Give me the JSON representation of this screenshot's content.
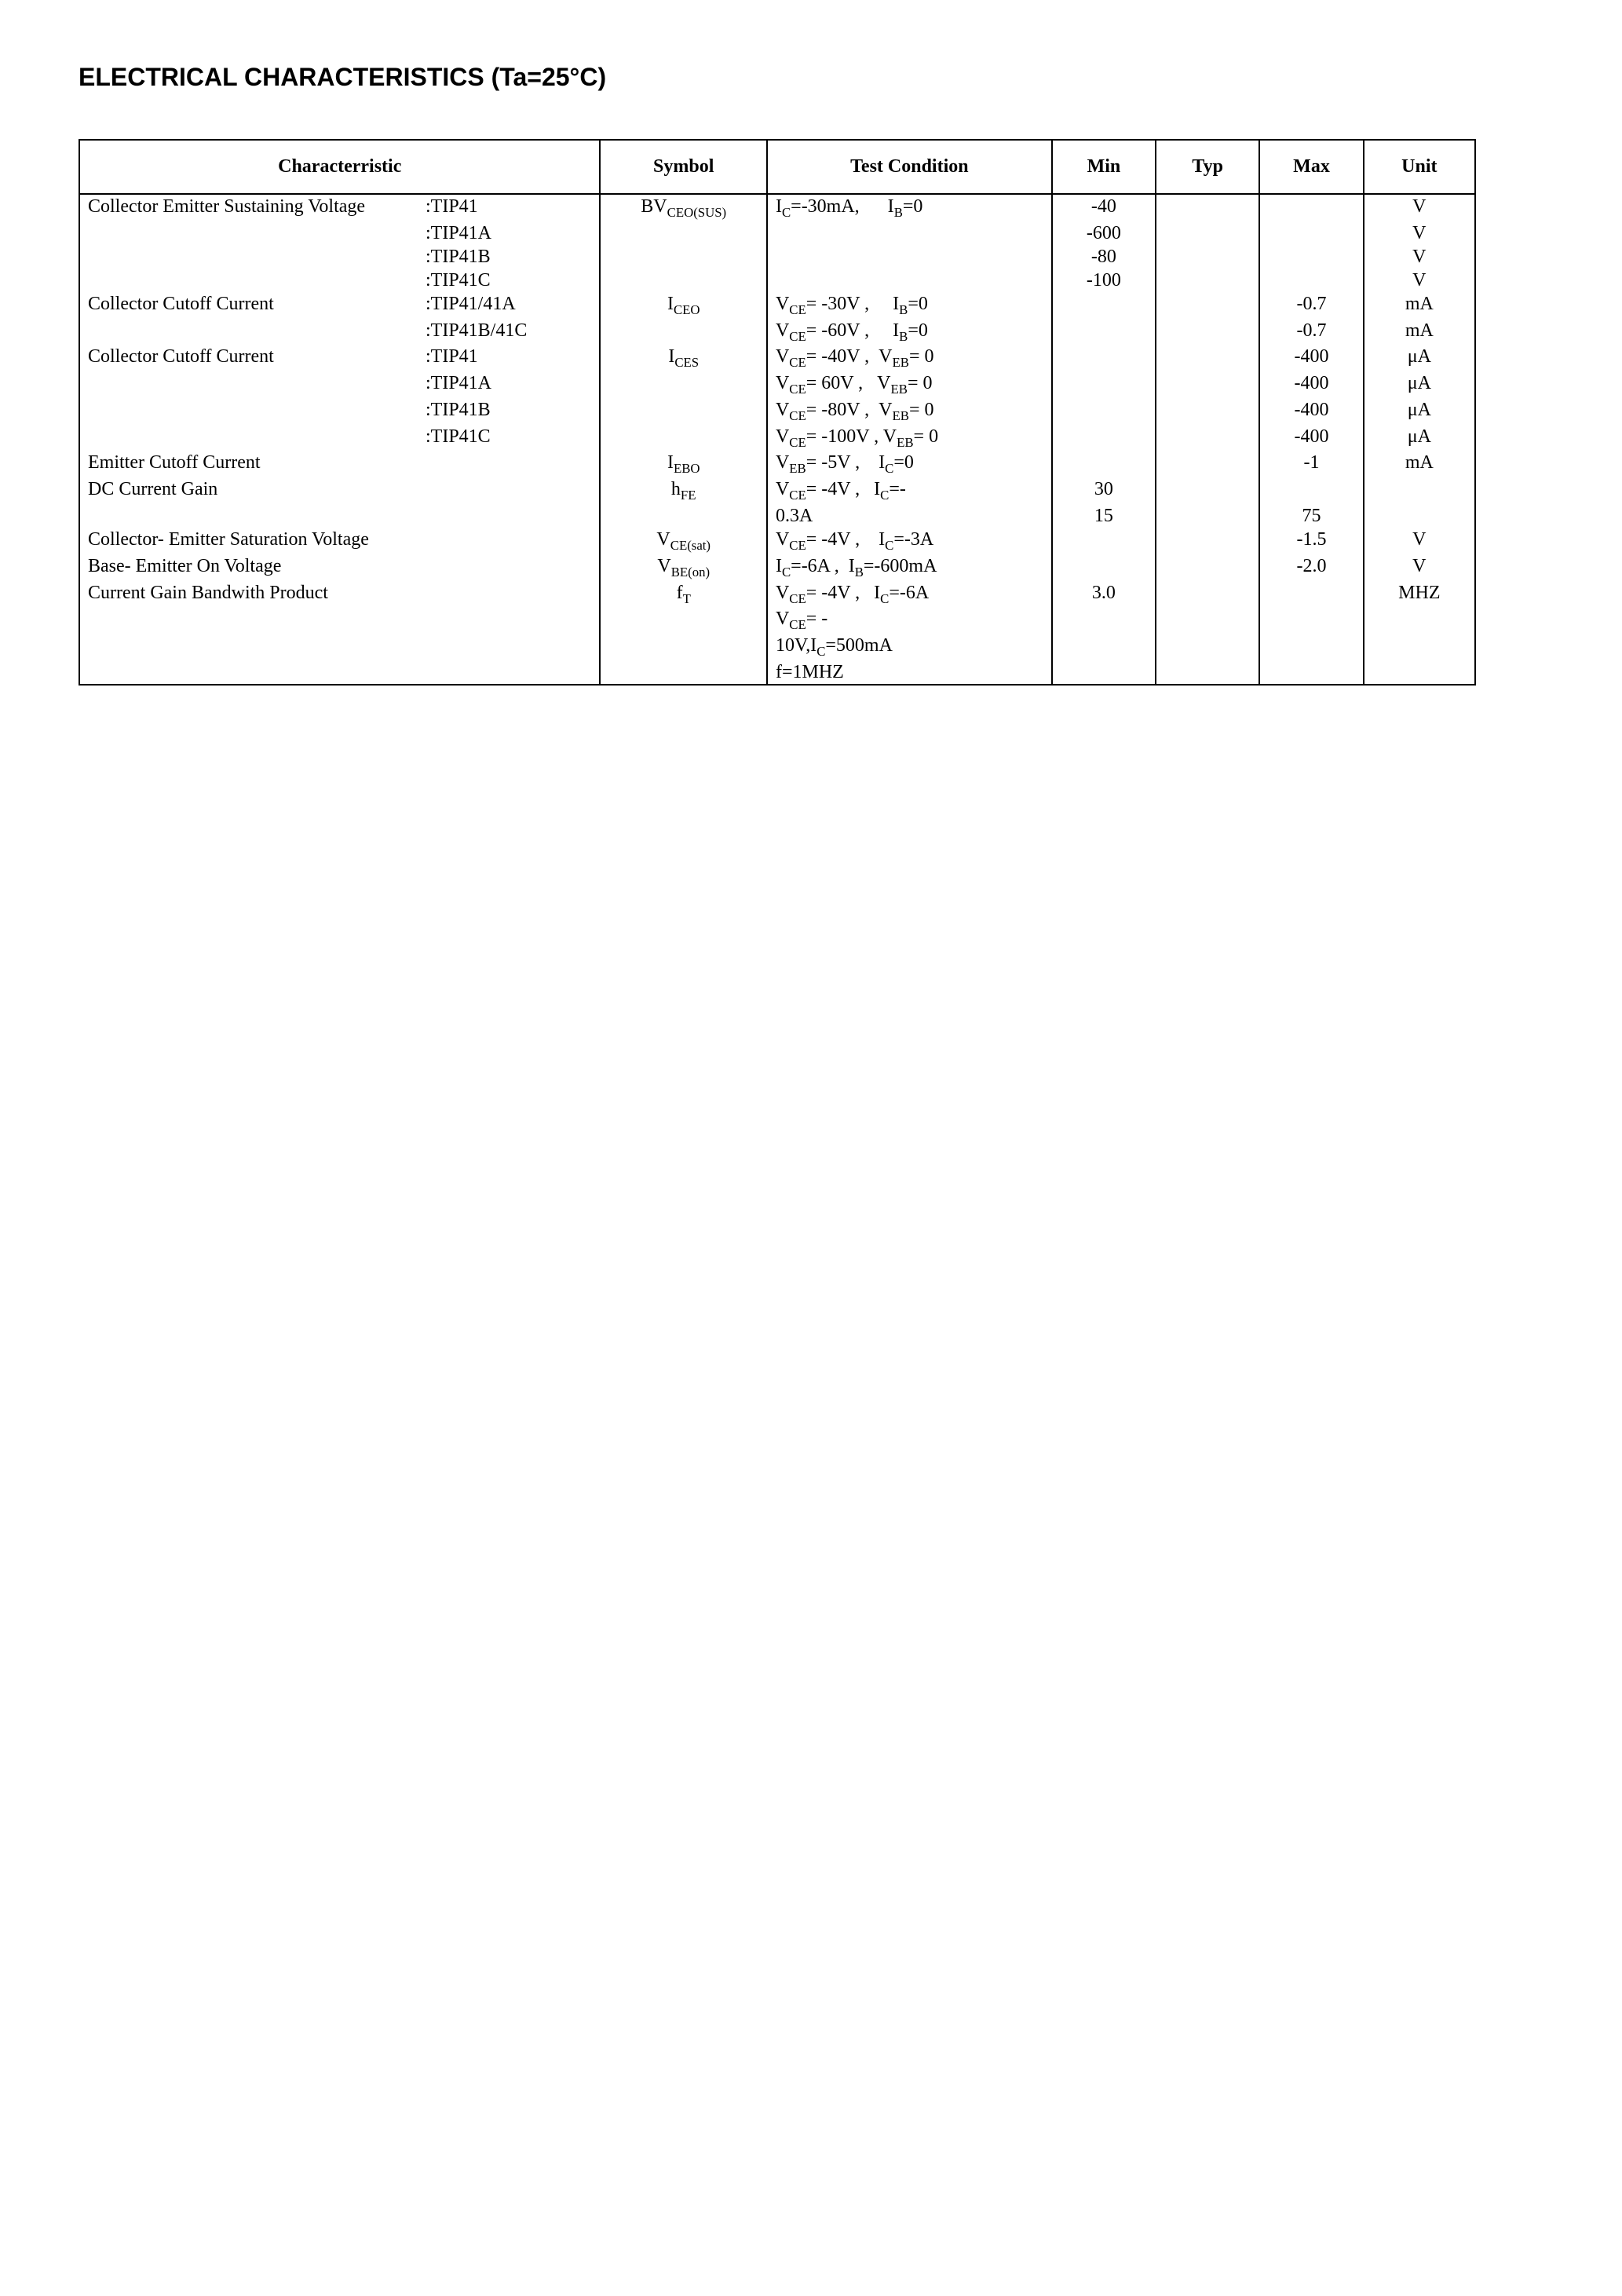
{
  "title": "ELECTRICAL CHARACTERISTICS (Ta=25°C)",
  "headers": {
    "characteristic": "Characterristic",
    "symbol": "Symbol",
    "condition": "Test Condition",
    "min": "Min",
    "typ": "Typ",
    "max": "Max",
    "unit": "Unit"
  },
  "rows": [
    {
      "name": "Collector Emitter Sustaining Voltage",
      "variant": ":TIP41",
      "symbol_html": "BV<span class='sub'>CEO(SUS)</span>",
      "cond_html": "I<span class='sub'>C</span>=-30mA,&nbsp;&nbsp;&nbsp;&nbsp;&nbsp;&nbsp;I<span class='sub'>B</span>=0",
      "min": "-40",
      "typ": "",
      "max": "",
      "unit": "V"
    },
    {
      "name": "",
      "variant": ":TIP41A",
      "symbol_html": "",
      "cond_html": "",
      "min": "-600",
      "typ": "",
      "max": "",
      "unit": "V"
    },
    {
      "name": "",
      "variant": ":TIP41B",
      "symbol_html": "",
      "cond_html": "",
      "min": "-80",
      "typ": "",
      "max": "",
      "unit": "V"
    },
    {
      "name": "",
      "variant": ":TIP41C",
      "symbol_html": "",
      "cond_html": "",
      "min": "-100",
      "typ": "",
      "max": "",
      "unit": "V"
    },
    {
      "name": "Collector Cutoff Current",
      "variant": ":TIP41/41A",
      "symbol_html": "I<span class='sub'>CEO</span>",
      "cond_html": "V<span class='sub'>CE</span>= -30V ,&nbsp;&nbsp;&nbsp;&nbsp;&nbsp;I<span class='sub'>B</span>=0",
      "min": "",
      "typ": "",
      "max": "-0.7",
      "unit": "mA"
    },
    {
      "name": "",
      "variant": ":TIP41B/41C",
      "symbol_html": "",
      "cond_html": "V<span class='sub'>CE</span>= -60V ,&nbsp;&nbsp;&nbsp;&nbsp;&nbsp;I<span class='sub'>B</span>=0",
      "min": "",
      "typ": "",
      "max": "-0.7",
      "unit": "mA"
    },
    {
      "name": "Collector Cutoff Current",
      "variant": ":TIP41",
      "symbol_html": "I<span class='sub'>CES</span>",
      "cond_html": "V<span class='sub'>CE</span>= -40V ,&nbsp;&nbsp;V<span class='sub'>EB</span>= 0",
      "min": "",
      "typ": "",
      "max": "-400",
      "unit": "μA"
    },
    {
      "name": "",
      "variant": ":TIP41A",
      "symbol_html": "",
      "cond_html": "V<span class='sub'>CE</span>= 60V ,&nbsp;&nbsp;&nbsp;V<span class='sub'>EB</span>= 0",
      "min": "",
      "typ": "",
      "max": "-400",
      "unit": "μA"
    },
    {
      "name": "",
      "variant": ":TIP41B",
      "symbol_html": "",
      "cond_html": "V<span class='sub'>CE</span>= -80V ,&nbsp;&nbsp;V<span class='sub'>EB</span>= 0",
      "min": "",
      "typ": "",
      "max": "-400",
      "unit": "μA"
    },
    {
      "name": "",
      "variant": ":TIP41C",
      "symbol_html": "",
      "cond_html": "V<span class='sub'>CE</span>= -100V , V<span class='sub'>EB</span>= 0",
      "min": "",
      "typ": "",
      "max": "-400",
      "unit": "μA"
    },
    {
      "name": "Emitter Cutoff Current",
      "variant": "",
      "symbol_html": "I<span class='sub'>EBO</span>",
      "cond_html": "V<span class='sub'>EB</span>= -5V ,&nbsp;&nbsp;&nbsp;&nbsp;I<span class='sub'>C</span>=0",
      "min": "",
      "typ": "",
      "max": "-1",
      "unit": "mA"
    },
    {
      "name": "DC Current Gain",
      "variant": "",
      "symbol_html": "h<span class='sub'>FE</span>",
      "cond_html": "V<span class='sub'>CE</span>= -4V ,&nbsp;&nbsp;&nbsp;I<span class='sub'>C</span>=-",
      "min": "30",
      "typ": "",
      "max": "",
      "unit": ""
    },
    {
      "name": "",
      "variant": "",
      "symbol_html": "",
      "cond_html": "0.3A",
      "min": "15",
      "typ": "",
      "max": "75",
      "unit": ""
    },
    {
      "name": "Collector- Emitter Saturation Voltage",
      "variant": "",
      "symbol_html": "V<span class='sub'>CE(sat)</span>",
      "cond_html": "V<span class='sub'>CE</span>= -4V ,&nbsp;&nbsp;&nbsp;&nbsp;I<span class='sub'>C</span>=-3A",
      "min": "",
      "typ": "",
      "max": "-1.5",
      "unit": "V"
    },
    {
      "name": "Base- Emitter On Voltage",
      "variant": "",
      "symbol_html": "V<span class='sub'>BE(on)</span>",
      "cond_html": "I<span class='sub'>C</span>=-6A ,&nbsp;&nbsp;I<span class='sub'>B</span>=-600mA",
      "min": "",
      "typ": "",
      "max": "-2.0",
      "unit": "V"
    },
    {
      "name": "Current Gain Bandwith Product",
      "variant": "",
      "symbol_html": "f<span class='sub'>T</span>",
      "cond_html": "V<span class='sub'>CE</span>= -4V ,&nbsp;&nbsp;&nbsp;I<span class='sub'>C</span>=-6A",
      "min": "3.0",
      "typ": "",
      "max": "",
      "unit": "MHZ"
    },
    {
      "name": "",
      "variant": "",
      "symbol_html": "",
      "cond_html": "V<span class='sub'>CE</span>= -",
      "min": "",
      "typ": "",
      "max": "",
      "unit": ""
    },
    {
      "name": "",
      "variant": "",
      "symbol_html": "",
      "cond_html": "10V,I<span class='sub'>C</span>=500mA",
      "min": "",
      "typ": "",
      "max": "",
      "unit": ""
    },
    {
      "name": "",
      "variant": "",
      "symbol_html": "",
      "cond_html": "f=1MHZ",
      "min": "",
      "typ": "",
      "max": "",
      "unit": ""
    }
  ],
  "style": {
    "title_fontsize": 32,
    "body_fontsize": 24,
    "text_color": "#000000",
    "background_color": "#ffffff",
    "border_color": "#000000",
    "columns": {
      "characteristic_width": 640,
      "symbol_width": 190,
      "condition_width": 340,
      "min_width": 110,
      "typ_width": 110,
      "max_width": 110,
      "unit_width": 120
    }
  }
}
